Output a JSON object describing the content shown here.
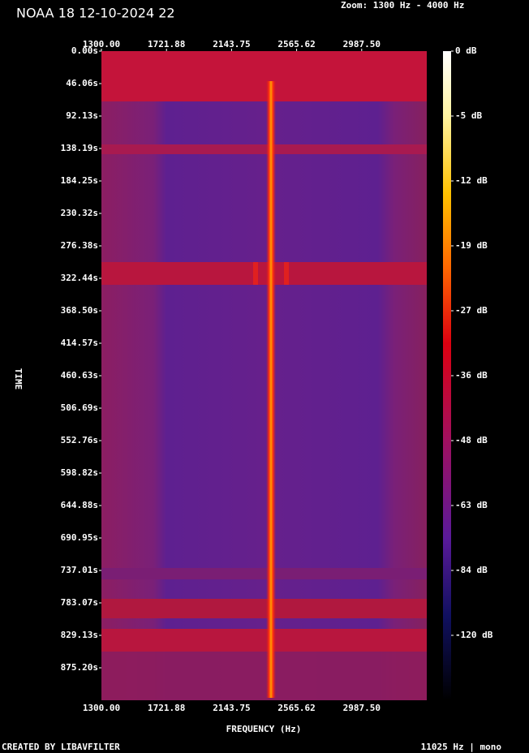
{
  "chart_data": {
    "type": "spectrogram",
    "title": "NOAA 18 12-10-2024 22",
    "zoom_label": "Zoom: 1300 Hz - 4000 Hz",
    "xlabel": "FREQUENCY (Hz)",
    "ylabel": "TIME",
    "footer_left": "CREATED BY LIBAVFILTER",
    "footer_right": "11025 Hz | mono",
    "xlim": [
      1300,
      3409.375
    ],
    "xticks": [
      {
        "value": 1300,
        "label": "1300.00"
      },
      {
        "value": 1721.88,
        "label": "1721.88"
      },
      {
        "value": 2143.75,
        "label": "2143.75"
      },
      {
        "value": 2565.62,
        "label": "2565.62"
      },
      {
        "value": 2987.5,
        "label": "2987.50"
      }
    ],
    "ylim": [
      0,
      921.25
    ],
    "yticks": [
      {
        "value": 0,
        "label": "0.00s"
      },
      {
        "value": 46.06,
        "label": "46.06s"
      },
      {
        "value": 92.13,
        "label": "92.13s"
      },
      {
        "value": 138.19,
        "label": "138.19s"
      },
      {
        "value": 184.25,
        "label": "184.25s"
      },
      {
        "value": 230.32,
        "label": "230.32s"
      },
      {
        "value": 276.38,
        "label": "276.38s"
      },
      {
        "value": 322.44,
        "label": "322.44s"
      },
      {
        "value": 368.5,
        "label": "368.50s"
      },
      {
        "value": 414.57,
        "label": "414.57s"
      },
      {
        "value": 460.63,
        "label": "460.63s"
      },
      {
        "value": 506.69,
        "label": "506.69s"
      },
      {
        "value": 552.76,
        "label": "552.76s"
      },
      {
        "value": 598.82,
        "label": "598.82s"
      },
      {
        "value": 644.88,
        "label": "644.88s"
      },
      {
        "value": 690.95,
        "label": "690.95s"
      },
      {
        "value": 737.01,
        "label": "737.01s"
      },
      {
        "value": 783.07,
        "label": "783.07s"
      },
      {
        "value": 829.13,
        "label": "829.13s"
      },
      {
        "value": 875.2,
        "label": "875.20s"
      }
    ],
    "colorbar_ticks": [
      {
        "value": 0,
        "label": "0 dB"
      },
      {
        "value": -5,
        "label": "-5 dB"
      },
      {
        "value": -12,
        "label": "-12 dB"
      },
      {
        "value": -19,
        "label": "-19 dB"
      },
      {
        "value": -27,
        "label": "-27 dB"
      },
      {
        "value": -36,
        "label": "-36 dB"
      },
      {
        "value": -48,
        "label": "-48 dB"
      },
      {
        "value": -63,
        "label": "-63 dB"
      },
      {
        "value": -84,
        "label": "-84 dB"
      },
      {
        "value": -120,
        "label": "-120 dB"
      }
    ]
  }
}
